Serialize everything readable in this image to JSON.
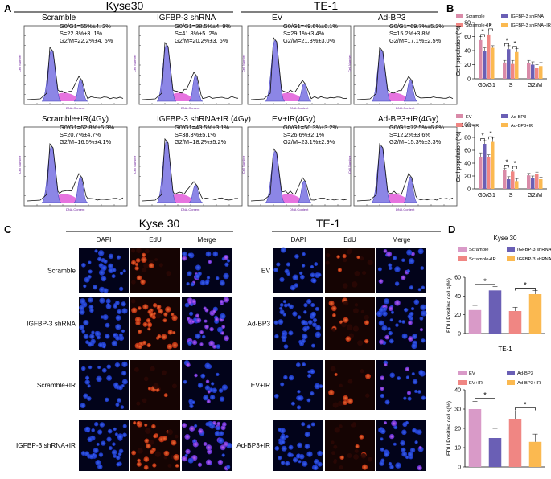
{
  "panels": {
    "A": {
      "letter": "A",
      "left_title": "Kyse30",
      "right_title": "TE-1"
    },
    "B": {
      "letter": "B"
    },
    "C": {
      "letter": "C",
      "left_title": "Kyse 30",
      "right_title": "TE-1"
    },
    "D": {
      "letter": "D"
    }
  },
  "flow_axis": {
    "x": "DNA Content",
    "y": "Cell Number"
  },
  "flow_plots": [
    {
      "title": "Scramble",
      "stats": [
        "G0/G1=55%±4. 2%",
        "S=22.8%±3. 1%",
        "G2/M=22.2%±4. 5%"
      ]
    },
    {
      "title": "IGFBP-3 shRNA",
      "stats": [
        "G0/G1=38.5%±4. 9%",
        "S=41.8%±5. 2%",
        "G2/M=20.2%±3. 6%"
      ]
    },
    {
      "title": "EV",
      "stats": [
        "G0/G1=49.6%±6.1%",
        "S=29.1%±3.4%",
        "G2/M=21.3%±3.0%"
      ]
    },
    {
      "title": "Ad-BP3",
      "stats": [
        "G0/G1=69.7%±5.2%",
        "S=15.2%±3.8%",
        "G2/M=17.1%±2.5%"
      ]
    },
    {
      "title": "Scramble+IR(4Gy)",
      "stats": [
        "G0/G1=62.8%±5.3%",
        "S=20.7%±4.7%",
        "G2/M=16.5%±4.1%"
      ]
    },
    {
      "title": "IGFBP-3 shRNA+IR (4Gy)",
      "stats": [
        "G0/G1=43.5%±3.1%",
        "S=38.3%±5.1%",
        "G2/M=18.2%±5.2%"
      ]
    },
    {
      "title": "EV+IR(4Gy)",
      "stats": [
        "G0/G1=50.3%±3.2%",
        "S=26.6%±2.1%",
        "G2/M=23.1%±2.9%"
      ]
    },
    {
      "title": "Ad-BP3+IR(4Gy)",
      "stats": [
        "G0/G1=72.5%±6.8%",
        "S=12.2%±3.6%",
        "G2/M=15.3%±3.3%"
      ]
    }
  ],
  "colors": {
    "violet": "#6a5fb5",
    "salmon": "#f08683",
    "pink": "#e77fae",
    "orange": "#fbb950"
  },
  "chart_data": [
    {
      "id": "B-top",
      "type": "bar",
      "title": "",
      "ylabel": "Cell population (%)",
      "ylim": [
        0,
        80
      ],
      "yticks": [
        "0",
        "20",
        "40",
        "60",
        "80"
      ],
      "categories": [
        "G0/G1",
        "S",
        "G2/M"
      ],
      "legend": [
        "Scramble",
        "IGFBP-3 shRNA",
        "Scramble+IR",
        "IGFBP-3 shRNA+IR"
      ],
      "series": [
        {
          "name": "Scramble",
          "values": [
            55,
            23,
            22
          ],
          "err": [
            5,
            3,
            4
          ]
        },
        {
          "name": "IGFBP-3 shRNA",
          "values": [
            39,
            42,
            20
          ],
          "err": [
            5,
            5,
            4
          ]
        },
        {
          "name": "Scramble+IR",
          "values": [
            63,
            21,
            16
          ],
          "err": [
            5,
            5,
            4
          ]
        },
        {
          "name": "IGFBP-3 shRNA+IR",
          "values": [
            44,
            38,
            18
          ],
          "err": [
            3,
            5,
            5
          ]
        }
      ],
      "sig": [
        "*",
        "*",
        "*",
        "*"
      ]
    },
    {
      "id": "B-bottom",
      "type": "bar",
      "title": "",
      "ylabel": "Cell population (%)",
      "ylim": [
        0,
        100
      ],
      "yticks": [
        "0",
        "20",
        "40",
        "60",
        "80",
        "100"
      ],
      "categories": [
        "G0/G1",
        "S",
        "G2/M"
      ],
      "legend": [
        "EV",
        "Ad-BP3",
        "EV+IR",
        "Ad-BP3+IR"
      ],
      "series": [
        {
          "name": "EV",
          "values": [
            50,
            29,
            21
          ],
          "err": [
            6,
            3,
            3
          ]
        },
        {
          "name": "Ad-BP3",
          "values": [
            70,
            15,
            17
          ],
          "err": [
            5,
            4,
            3
          ]
        },
        {
          "name": "EV+IR",
          "values": [
            50,
            27,
            23
          ],
          "err": [
            3,
            2,
            3
          ]
        },
        {
          "name": "Ad-BP3+IR",
          "values": [
            73,
            12,
            15
          ],
          "err": [
            7,
            4,
            3
          ]
        }
      ],
      "sig": [
        "*",
        "*",
        "*",
        "*"
      ]
    },
    {
      "id": "D-top",
      "type": "bar",
      "title": "Kyse 30",
      "ylabel": "EDU Positive cell s(%)",
      "ylim": [
        0,
        60
      ],
      "yticks": [
        "0",
        "20",
        "40",
        "60"
      ],
      "categories": [
        "Scramble",
        "IGFBP-3 shRNA",
        "Scramble+IR",
        "IGFBP-3 shRNA+IR"
      ],
      "legend": [
        "Scramble",
        "IGFBP-3 shRNA",
        "Scramble+IR",
        "IGFBP-3 shRNA+IR"
      ],
      "series": [
        {
          "name": "EdU",
          "values": [
            25,
            46,
            24,
            42
          ],
          "err": [
            5,
            4,
            4,
            4
          ]
        }
      ],
      "sig": [
        "*",
        "*"
      ]
    },
    {
      "id": "D-bottom",
      "type": "bar",
      "title": "TE-1",
      "ylabel": "EDU Positive cell s(%)",
      "ylim": [
        0,
        40
      ],
      "yticks": [
        "0",
        "10",
        "20",
        "30",
        "40"
      ],
      "categories": [
        "EV",
        "Ad-BP3",
        "EV+IR",
        "Ad-BP3+IR"
      ],
      "legend": [
        "EV",
        "Ad-BP3",
        "EV+IR",
        "Ad-BP3+IR"
      ],
      "series": [
        {
          "name": "EdU",
          "values": [
            30,
            15,
            25,
            13
          ],
          "err": [
            4,
            5,
            4,
            4
          ]
        }
      ],
      "sig": [
        "*",
        "*"
      ]
    }
  ],
  "microscopy": {
    "col_headers": [
      "DAPI",
      "EdU",
      "Merge"
    ],
    "kyse_rows": [
      "Scramble",
      "IGFBP-3 shRNA",
      "Scramble+IR",
      "IGFBP-3 shRNA+IR"
    ],
    "te_rows": [
      "EV",
      "Ad-BP3",
      "EV+IR",
      "Ad-BP3+IR"
    ]
  }
}
